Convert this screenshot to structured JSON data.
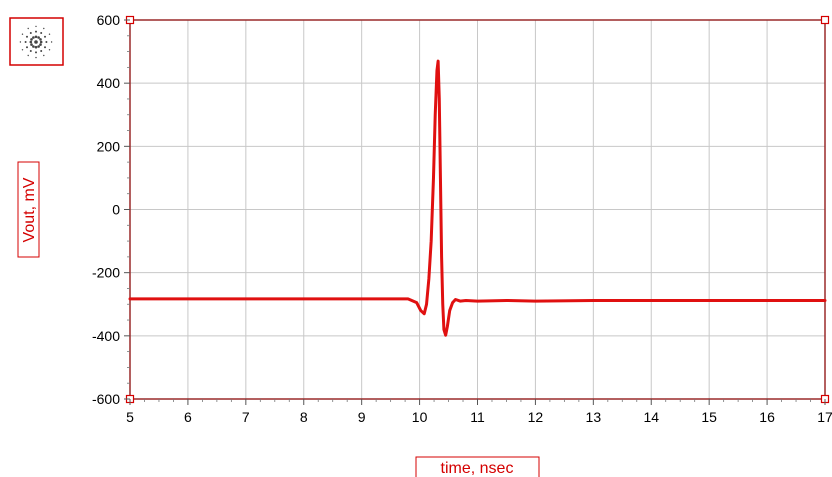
{
  "chart_data": {
    "type": "line",
    "title": "",
    "xlabel": "time, nsec",
    "ylabel": "Vout, mV",
    "xlim": [
      5,
      17
    ],
    "ylim": [
      -600,
      600
    ],
    "xticks": [
      5,
      6,
      7,
      8,
      9,
      10,
      11,
      12,
      13,
      14,
      15,
      16,
      17
    ],
    "yticks": [
      -600,
      -400,
      -200,
      0,
      200,
      400,
      600
    ],
    "grid": true,
    "legend": "none",
    "series": [
      {
        "color": "#e01010",
        "x": [
          5,
          6,
          7,
          8,
          9,
          9.8,
          9.95,
          10.02,
          10.08,
          10.12,
          10.16,
          10.2,
          10.24,
          10.27,
          10.3,
          10.32,
          10.34,
          10.36,
          10.38,
          10.4,
          10.42,
          10.45,
          10.48,
          10.52,
          10.57,
          10.62,
          10.7,
          10.8,
          11,
          11.5,
          12,
          13,
          14,
          15,
          16,
          17
        ],
        "y": [
          -283,
          -283,
          -283,
          -283,
          -283,
          -283,
          -295,
          -320,
          -330,
          -300,
          -220,
          -100,
          100,
          300,
          440,
          470,
          350,
          100,
          -150,
          -300,
          -380,
          -398,
          -370,
          -320,
          -295,
          -285,
          -290,
          -288,
          -290,
          -288,
          -290,
          -288,
          -288,
          -288,
          -288,
          -288
        ]
      }
    ]
  },
  "colors": {
    "accent": "#d40000",
    "line": "#e01010",
    "grid": "#c8c8c8",
    "frame": "#9a2a2a"
  },
  "icons": [
    "agilent-spark-icon"
  ]
}
